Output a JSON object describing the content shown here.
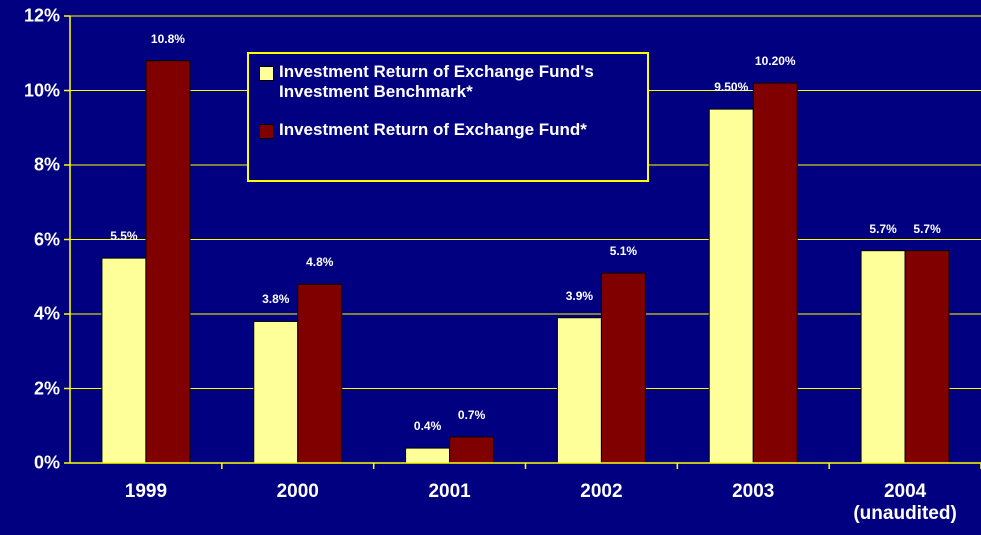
{
  "chart_data": {
    "type": "bar",
    "categories": [
      "1999",
      "2000",
      "2001",
      "2002",
      "2003",
      "2004\n(unaudited)"
    ],
    "series": [
      {
        "name": "Investment Return of Exchange Fund's Investment Benchmark*",
        "color": "#ffff99",
        "values": [
          5.5,
          3.8,
          0.4,
          3.9,
          9.5,
          5.7
        ],
        "value_labels": [
          "5.5%",
          "3.8%",
          "0.4%",
          "3.9%",
          "9.50%",
          "5.7%"
        ]
      },
      {
        "name": "Investment Return of Exchange Fund*",
        "color": "#800000",
        "values": [
          10.8,
          4.8,
          0.7,
          5.1,
          10.2,
          5.7
        ],
        "value_labels": [
          "10.8%",
          "4.8%",
          "0.7%",
          "5.1%",
          "10.20%",
          "5.7%"
        ]
      }
    ],
    "ylim": [
      0,
      12
    ],
    "yticks": [
      {
        "value": 0,
        "label": "0%"
      },
      {
        "value": 2,
        "label": "2%"
      },
      {
        "value": 4,
        "label": "4%"
      },
      {
        "value": 6,
        "label": "6%"
      },
      {
        "value": 8,
        "label": "8%"
      },
      {
        "value": 10,
        "label": "10%"
      },
      {
        "value": 12,
        "label": "12%"
      }
    ],
    "grid": true
  }
}
